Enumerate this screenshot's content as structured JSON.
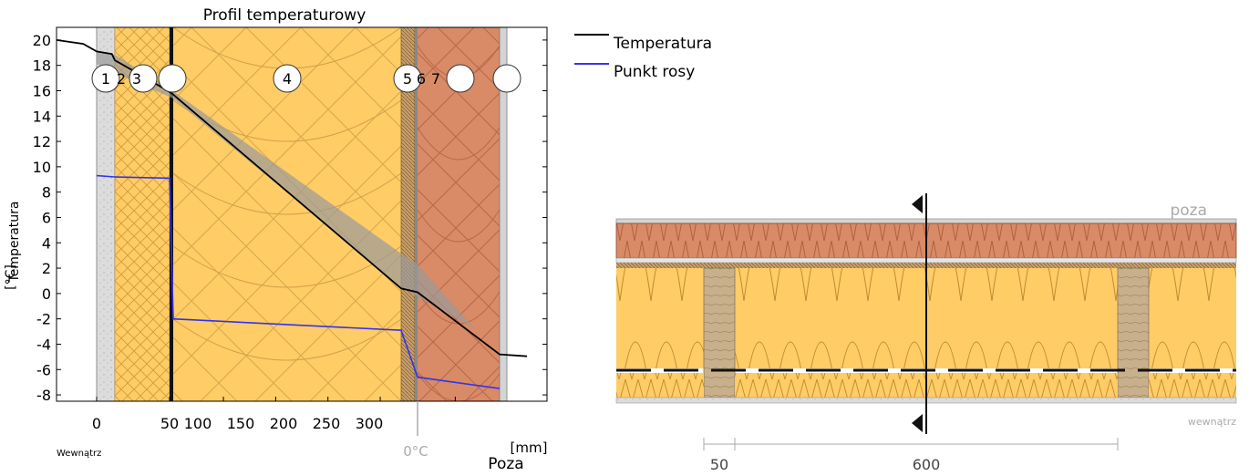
{
  "chart": {
    "title": "Profil temperaturowy",
    "ylabel": "Temperatura",
    "yunit": "[°C]",
    "xunit": "[mm]",
    "inside_label": "Wewnątrz",
    "outside_label": "Poza",
    "zero_label": "0°C"
  },
  "legend": {
    "items": [
      {
        "label": "Temperatura",
        "color": "#000000"
      },
      {
        "label": "Punkt rosy",
        "color": "#3333ee"
      }
    ]
  },
  "layer_markers": [
    "1",
    "2",
    "3",
    "",
    "4",
    "5",
    "6",
    "7",
    "",
    ""
  ],
  "section": {
    "outside_label": "poza",
    "inside_label": "wewnątrz",
    "dim_stud": "50",
    "dim_spacing": "600"
  },
  "chart_data": {
    "type": "line",
    "title": "Profil temperaturowy",
    "xlabel": "[mm]",
    "ylabel": "Temperatura [°C]",
    "ylim": [
      -8.5,
      21
    ],
    "yticks": [
      20,
      18,
      16,
      14,
      12,
      10,
      8,
      6,
      4,
      2,
      0,
      -2,
      -4,
      -6,
      -8
    ],
    "xticks": [
      0,
      50,
      100,
      150,
      200,
      250,
      300
    ],
    "grid": false,
    "legend_position": "right",
    "series": [
      {
        "name": "Temperatura",
        "color": "#000000",
        "x": [
          -15,
          -5,
          0,
          12.5,
          15,
          35,
          50,
          52,
          270,
          283,
          320,
          335
        ],
        "y": [
          20,
          19.7,
          19.1,
          18.9,
          18.4,
          17.0,
          15.9,
          15.7,
          0.4,
          0.1,
          -4.8,
          -4.95
        ]
      },
      {
        "name": "Punkt rosy",
        "color": "#3333ee",
        "x": [
          0,
          15,
          50,
          52,
          270,
          283,
          320
        ],
        "y": [
          9.3,
          9.2,
          9.1,
          -2.0,
          -2.9,
          -6.6,
          -7.5
        ]
      }
    ]
  }
}
